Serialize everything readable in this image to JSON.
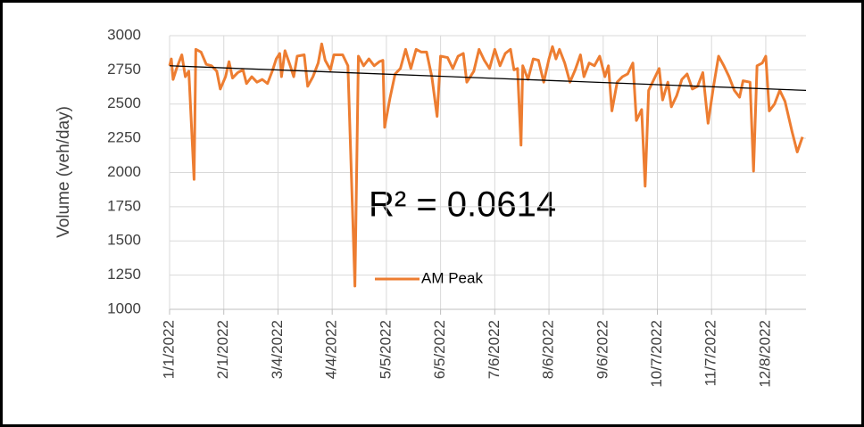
{
  "chart_data": {
    "type": "line",
    "y_label": "Volume (veh/day)",
    "annotation": "R² = 0.0614",
    "ylim": [
      1000,
      3000
    ],
    "yticks": [
      1000,
      1250,
      1500,
      1750,
      2000,
      2250,
      2500,
      2750,
      3000
    ],
    "xlim": [
      "1/1/2022",
      "12/31/2022"
    ],
    "xticks": [
      "1/1/2022",
      "2/1/2022",
      "3/4/2022",
      "4/4/2022",
      "5/5/2022",
      "6/5/2022",
      "7/6/2022",
      "8/6/2022",
      "9/6/2022",
      "10/7/2022",
      "11/7/2022",
      "12/8/2022"
    ],
    "grid": true,
    "legend": "center",
    "x": [
      "1/1/2022",
      "1/2/2022",
      "1/3/2022",
      "1/5/2022",
      "1/8/2022",
      "1/10/2022",
      "1/12/2022",
      "1/15/2022",
      "1/16/2022",
      "1/19/2022",
      "1/22/2022",
      "1/25/2022",
      "1/28/2022",
      "1/30/2022",
      "2/2/2022",
      "2/4/2022",
      "2/6/2022",
      "2/9/2022",
      "2/12/2022",
      "2/14/2022",
      "2/17/2022",
      "2/20/2022",
      "2/23/2022",
      "2/26/2022",
      "3/1/2022",
      "3/3/2022",
      "3/5/2022",
      "3/6/2022",
      "3/8/2022",
      "3/11/2022",
      "3/13/2022",
      "3/15/2022",
      "3/19/2022",
      "3/21/2022",
      "3/24/2022",
      "3/27/2022",
      "3/29/2022",
      "3/31/2022",
      "4/3/2022",
      "4/5/2022",
      "4/10/2022",
      "4/13/2022",
      "4/17/2022",
      "4/19/2022",
      "4/22/2022",
      "4/25/2022",
      "4/28/2022",
      "5/1/2022",
      "5/3/2022",
      "5/4/2022",
      "5/7/2022",
      "5/10/2022",
      "5/13/2022",
      "5/16/2022",
      "5/19/2022",
      "5/22/2022",
      "5/25/2022",
      "5/28/2022",
      "5/31/2022",
      "6/3/2022",
      "6/5/2022",
      "6/9/2022",
      "6/12/2022",
      "6/15/2022",
      "6/18/2022",
      "6/20/2022",
      "6/24/2022",
      "6/27/2022",
      "6/30/2022",
      "7/3/2022",
      "7/6/2022",
      "7/9/2022",
      "7/12/2022",
      "7/15/2022",
      "7/17/2022",
      "7/19/2022",
      "7/21/2022",
      "7/22/2022",
      "7/25/2022",
      "7/28/2022",
      "7/31/2022",
      "8/3/2022",
      "8/6/2022",
      "8/8/2022",
      "8/10/2022",
      "8/12/2022",
      "8/15/2022",
      "8/18/2022",
      "8/21/2022",
      "8/24/2022",
      "8/26/2022",
      "8/29/2022",
      "9/1/2022",
      "9/4/2022",
      "9/7/2022",
      "9/9/2022",
      "9/11/2022",
      "9/14/2022",
      "9/17/2022",
      "9/20/2022",
      "9/23/2022",
      "9/25/2022",
      "9/28/2022",
      "9/30/2022",
      "10/2/2022",
      "10/5/2022",
      "10/8/2022",
      "10/10/2022",
      "10/13/2022",
      "10/15/2022",
      "10/18/2022",
      "10/21/2022",
      "10/24/2022",
      "10/27/2022",
      "10/30/2022",
      "11/2/2022",
      "11/5/2022",
      "11/8/2022",
      "11/11/2022",
      "11/14/2022",
      "11/17/2022",
      "11/20/2022",
      "11/23/2022",
      "11/25/2022",
      "11/29/2022",
      "12/1/2022",
      "12/3/2022",
      "12/6/2022",
      "12/8/2022",
      "12/10/2022",
      "12/13/2022",
      "12/16/2022",
      "12/19/2022",
      "12/23/2022",
      "12/26/2022",
      "12/29/2022"
    ],
    "series": [
      {
        "name": "AM Peak",
        "color": "#ed7d31",
        "values": [
          2780,
          2830,
          2680,
          2760,
          2860,
          2700,
          2740,
          1950,
          2900,
          2880,
          2790,
          2780,
          2740,
          2610,
          2700,
          2810,
          2690,
          2730,
          2750,
          2650,
          2700,
          2660,
          2680,
          2650,
          2750,
          2830,
          2870,
          2700,
          2890,
          2780,
          2700,
          2850,
          2860,
          2630,
          2700,
          2800,
          2940,
          2820,
          2750,
          2860,
          2860,
          2780,
          1170,
          2850,
          2780,
          2830,
          2780,
          2810,
          2820,
          2330,
          2540,
          2720,
          2760,
          2900,
          2760,
          2900,
          2880,
          2880,
          2700,
          2410,
          2850,
          2840,
          2760,
          2850,
          2870,
          2660,
          2740,
          2900,
          2820,
          2760,
          2900,
          2780,
          2870,
          2900,
          2750,
          2760,
          2200,
          2780,
          2680,
          2830,
          2820,
          2660,
          2830,
          2920,
          2830,
          2900,
          2800,
          2660,
          2750,
          2860,
          2700,
          2800,
          2780,
          2850,
          2700,
          2780,
          2450,
          2660,
          2700,
          2720,
          2800,
          2380,
          2460,
          1900,
          2600,
          2680,
          2760,
          2530,
          2660,
          2480,
          2560,
          2680,
          2720,
          2610,
          2630,
          2730,
          2360,
          2620,
          2850,
          2780,
          2700,
          2600,
          2550,
          2670,
          2660,
          2010,
          2780,
          2800,
          2850,
          2450,
          2500,
          2600,
          2520,
          2300,
          2150,
          2260
        ]
      }
    ],
    "trendline": {
      "x": [
        "1/1/2022",
        "12/31/2022"
      ],
      "values": [
        2780,
        2600
      ],
      "color": "#000000"
    }
  }
}
